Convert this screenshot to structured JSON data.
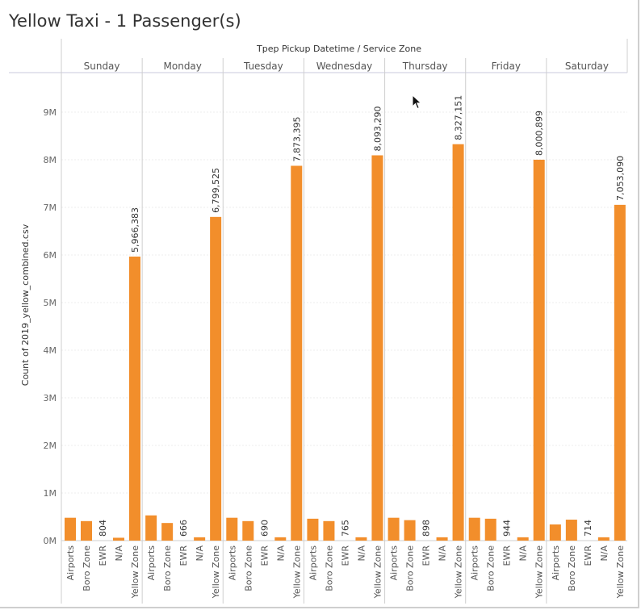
{
  "title": "Yellow Taxi - 1 Passenger(s)",
  "chart_data": {
    "type": "bar",
    "header": "Tpep Pickup Datetime  /  Service Zone",
    "ylabel": "Count of 2019_yellow_combined.csv",
    "ylim": [
      0,
      10000000
    ],
    "yticks": [
      0,
      1000000,
      2000000,
      3000000,
      4000000,
      5000000,
      6000000,
      7000000,
      8000000,
      9000000
    ],
    "ytick_labels": [
      "0M",
      "1M",
      "2M",
      "3M",
      "4M",
      "5M",
      "6M",
      "7M",
      "8M",
      "9M"
    ],
    "categories": [
      "Airports",
      "Boro Zone",
      "EWR",
      "N/A",
      "Yellow Zone"
    ],
    "bar_color": "#f28e2b",
    "groups": [
      {
        "name": "Sunday",
        "values": [
          480000,
          410000,
          804,
          60000,
          5966383
        ],
        "labels": [
          "",
          "",
          "804",
          "",
          "5,966,383"
        ]
      },
      {
        "name": "Monday",
        "values": [
          530000,
          370000,
          666,
          70000,
          6799525
        ],
        "labels": [
          "",
          "",
          "666",
          "",
          "6,799,525"
        ]
      },
      {
        "name": "Tuesday",
        "values": [
          480000,
          410000,
          690,
          70000,
          7873395
        ],
        "labels": [
          "",
          "",
          "690",
          "",
          "7,873,395"
        ]
      },
      {
        "name": "Wednesday",
        "values": [
          460000,
          410000,
          765,
          70000,
          8093290
        ],
        "labels": [
          "",
          "",
          "765",
          "",
          "8,093,290"
        ]
      },
      {
        "name": "Thursday",
        "values": [
          480000,
          430000,
          898,
          70000,
          8327151
        ],
        "labels": [
          "",
          "",
          "898",
          "",
          "8,327,151"
        ]
      },
      {
        "name": "Friday",
        "values": [
          480000,
          460000,
          944,
          70000,
          8000899
        ],
        "labels": [
          "",
          "",
          "944",
          "",
          "8,000,899"
        ]
      },
      {
        "name": "Saturday",
        "values": [
          340000,
          440000,
          714,
          70000,
          7053090
        ],
        "labels": [
          "",
          "",
          "714",
          "",
          "7,053,090"
        ]
      }
    ]
  }
}
